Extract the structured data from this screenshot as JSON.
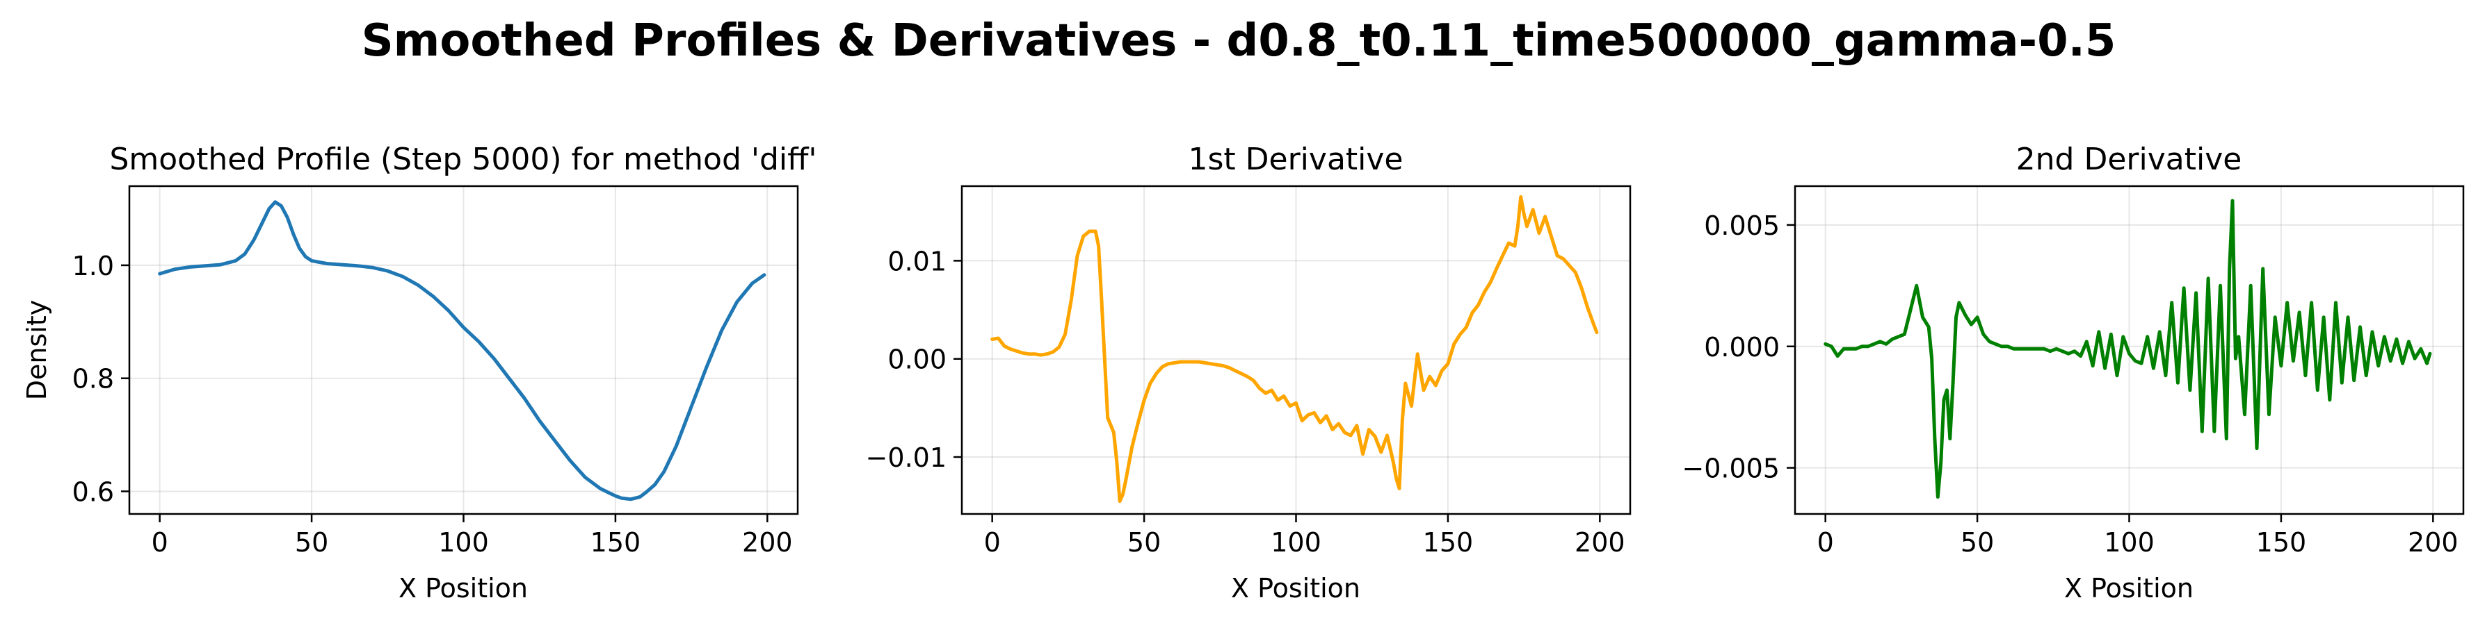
{
  "suptitle": "Smoothed Profiles & Derivatives - d0.8_t0.11_time500000_gamma-0.5",
  "chart_data": [
    {
      "type": "line",
      "title": "Smoothed Profile (Step 5000) for method 'diff'",
      "xlabel": "X Position",
      "ylabel": "Density",
      "xlim": [
        -10,
        210
      ],
      "ylim": [
        0.56,
        1.14
      ],
      "xticks": [
        0,
        50,
        100,
        150,
        200
      ],
      "yticks": [
        0.6,
        0.8,
        1.0
      ],
      "ytick_labels": [
        "0.6",
        "0.8",
        "1.0"
      ],
      "grid": true,
      "color": "#1f77b4",
      "x": [
        0,
        5,
        10,
        15,
        20,
        25,
        28,
        31,
        34,
        36,
        38,
        40,
        42,
        44,
        46,
        48,
        50,
        55,
        60,
        65,
        70,
        75,
        80,
        85,
        90,
        95,
        100,
        105,
        110,
        115,
        120,
        125,
        130,
        135,
        140,
        145,
        148,
        150,
        152,
        155,
        158,
        160,
        163,
        166,
        170,
        175,
        180,
        185,
        190,
        195,
        199
      ],
      "y": [
        0.985,
        0.993,
        0.997,
        0.999,
        1.001,
        1.008,
        1.02,
        1.045,
        1.078,
        1.1,
        1.112,
        1.105,
        1.085,
        1.055,
        1.03,
        1.015,
        1.008,
        1.003,
        1.001,
        0.999,
        0.996,
        0.99,
        0.98,
        0.965,
        0.945,
        0.92,
        0.89,
        0.865,
        0.835,
        0.8,
        0.765,
        0.725,
        0.69,
        0.655,
        0.625,
        0.605,
        0.597,
        0.592,
        0.588,
        0.586,
        0.59,
        0.598,
        0.612,
        0.635,
        0.68,
        0.75,
        0.82,
        0.885,
        0.935,
        0.968,
        0.983
      ]
    },
    {
      "type": "line",
      "title": "1st Derivative",
      "xlabel": "X Position",
      "ylabel": "",
      "xlim": [
        -10,
        210
      ],
      "ylim": [
        -0.0158,
        0.0176
      ],
      "xticks": [
        0,
        50,
        100,
        150,
        200
      ],
      "yticks": [
        -0.01,
        0.0,
        0.01
      ],
      "ytick_labels": [
        "−0.01",
        "0.00",
        "0.01"
      ],
      "grid": true,
      "color": "#ffa500",
      "x": [
        0,
        2,
        4,
        6,
        8,
        10,
        12,
        14,
        16,
        18,
        20,
        22,
        24,
        26,
        28,
        30,
        32,
        34,
        35,
        36,
        38,
        40,
        41,
        42,
        43,
        44,
        46,
        48,
        50,
        52,
        54,
        56,
        58,
        60,
        62,
        64,
        66,
        68,
        70,
        72,
        74,
        76,
        78,
        80,
        82,
        84,
        86,
        88,
        90,
        92,
        94,
        96,
        98,
        100,
        102,
        104,
        106,
        108,
        110,
        112,
        114,
        116,
        118,
        120,
        122,
        124,
        126,
        128,
        130,
        132,
        133,
        134,
        135,
        136,
        138,
        140,
        142,
        144,
        146,
        148,
        150,
        152,
        154,
        156,
        158,
        160,
        162,
        164,
        166,
        168,
        170,
        172,
        173,
        174,
        175,
        176,
        178,
        180,
        182,
        184,
        186,
        188,
        190,
        192,
        194,
        196,
        198,
        199
      ],
      "y": [
        0.002,
        0.0021,
        0.0013,
        0.001,
        0.0008,
        0.0006,
        0.0005,
        0.0005,
        0.0004,
        0.0005,
        0.0007,
        0.0012,
        0.0025,
        0.006,
        0.0105,
        0.0125,
        0.013,
        0.013,
        0.0115,
        0.006,
        -0.006,
        -0.0075,
        -0.0105,
        -0.0145,
        -0.0138,
        -0.0123,
        -0.009,
        -0.0065,
        -0.0042,
        -0.0025,
        -0.0015,
        -0.0008,
        -0.0005,
        -0.0004,
        -0.0003,
        -0.0003,
        -0.0003,
        -0.0003,
        -0.0004,
        -0.0005,
        -0.0006,
        -0.0007,
        -0.0009,
        -0.0012,
        -0.0015,
        -0.0018,
        -0.0022,
        -0.003,
        -0.0035,
        -0.0032,
        -0.0042,
        -0.0038,
        -0.0048,
        -0.0045,
        -0.0063,
        -0.0057,
        -0.0055,
        -0.0065,
        -0.0058,
        -0.0072,
        -0.0066,
        -0.0075,
        -0.0078,
        -0.0068,
        -0.0097,
        -0.0072,
        -0.0079,
        -0.0095,
        -0.0078,
        -0.0105,
        -0.0122,
        -0.0132,
        -0.0062,
        -0.0025,
        -0.0048,
        0.0005,
        -0.0032,
        -0.0018,
        -0.0027,
        -0.0012,
        -0.0005,
        0.0015,
        0.0025,
        0.0032,
        0.0047,
        0.0055,
        0.0068,
        0.0078,
        0.0092,
        0.0105,
        0.0118,
        0.0115,
        0.0135,
        0.0165,
        0.0148,
        0.0135,
        0.0152,
        0.0128,
        0.0145,
        0.0125,
        0.0105,
        0.0102,
        0.0095,
        0.0088,
        0.0072,
        0.0052,
        0.0035,
        0.0027
      ]
    },
    {
      "type": "line",
      "title": "2nd Derivative",
      "xlabel": "X Position",
      "ylabel": "",
      "xlim": [
        -10,
        210
      ],
      "ylim": [
        -0.0069,
        0.0066
      ],
      "xticks": [
        0,
        50,
        100,
        150,
        200
      ],
      "yticks": [
        -0.005,
        0.0,
        0.005
      ],
      "ytick_labels": [
        "−0.005",
        "0.000",
        "0.005"
      ],
      "grid": true,
      "color": "#008000",
      "x": [
        0,
        2,
        4,
        6,
        8,
        10,
        12,
        14,
        16,
        18,
        20,
        22,
        24,
        26,
        28,
        30,
        32,
        34,
        35,
        36,
        37,
        38,
        39,
        40,
        41,
        42,
        43,
        44,
        46,
        48,
        50,
        52,
        54,
        56,
        58,
        60,
        62,
        64,
        66,
        68,
        70,
        72,
        74,
        76,
        78,
        80,
        82,
        84,
        86,
        88,
        90,
        92,
        94,
        96,
        98,
        100,
        102,
        104,
        106,
        108,
        110,
        112,
        114,
        116,
        118,
        120,
        122,
        124,
        126,
        128,
        130,
        132,
        133,
        134,
        135,
        136,
        138,
        140,
        142,
        144,
        146,
        148,
        150,
        152,
        154,
        156,
        158,
        160,
        162,
        164,
        166,
        168,
        170,
        172,
        174,
        176,
        178,
        180,
        182,
        184,
        186,
        188,
        190,
        192,
        194,
        196,
        198,
        199
      ],
      "y": [
        0.0001,
        0.0,
        -0.0004,
        -0.0001,
        -0.0001,
        -0.0001,
        0.0,
        0.0,
        0.0001,
        0.0002,
        0.0001,
        0.0003,
        0.0004,
        0.0005,
        0.0015,
        0.0025,
        0.0012,
        0.0008,
        -0.0005,
        -0.0038,
        -0.0062,
        -0.0048,
        -0.0022,
        -0.0018,
        -0.0038,
        -0.0015,
        0.0012,
        0.0018,
        0.0013,
        0.0009,
        0.0012,
        0.0005,
        0.0002,
        0.0001,
        0.0,
        0.0,
        -0.0001,
        -0.0001,
        -0.0001,
        -0.0001,
        -0.0001,
        -0.0001,
        -0.0002,
        -0.0001,
        -0.0002,
        -0.0003,
        -0.0002,
        -0.0004,
        0.0002,
        -0.0008,
        0.0006,
        -0.0009,
        0.0005,
        -0.0012,
        0.0004,
        -0.0003,
        -0.0006,
        -0.0007,
        0.0004,
        -0.0009,
        0.0006,
        -0.0012,
        0.0018,
        -0.0015,
        0.0024,
        -0.0018,
        0.0022,
        -0.0035,
        0.0028,
        -0.0035,
        0.0025,
        -0.0038,
        0.0032,
        0.006,
        -0.0005,
        0.0004,
        -0.0028,
        0.0025,
        -0.0042,
        0.0032,
        -0.0028,
        0.0012,
        -0.0008,
        0.0018,
        -0.0006,
        0.0014,
        -0.0012,
        0.0018,
        -0.0018,
        0.0012,
        -0.0022,
        0.0018,
        -0.0015,
        0.0012,
        -0.0014,
        0.0008,
        -0.0012,
        0.0006,
        -0.0008,
        0.0004,
        -0.0006,
        0.0003,
        -0.0007,
        0.0002,
        -0.0005,
        -0.0001,
        -0.0007,
        -0.0003
      ]
    }
  ]
}
